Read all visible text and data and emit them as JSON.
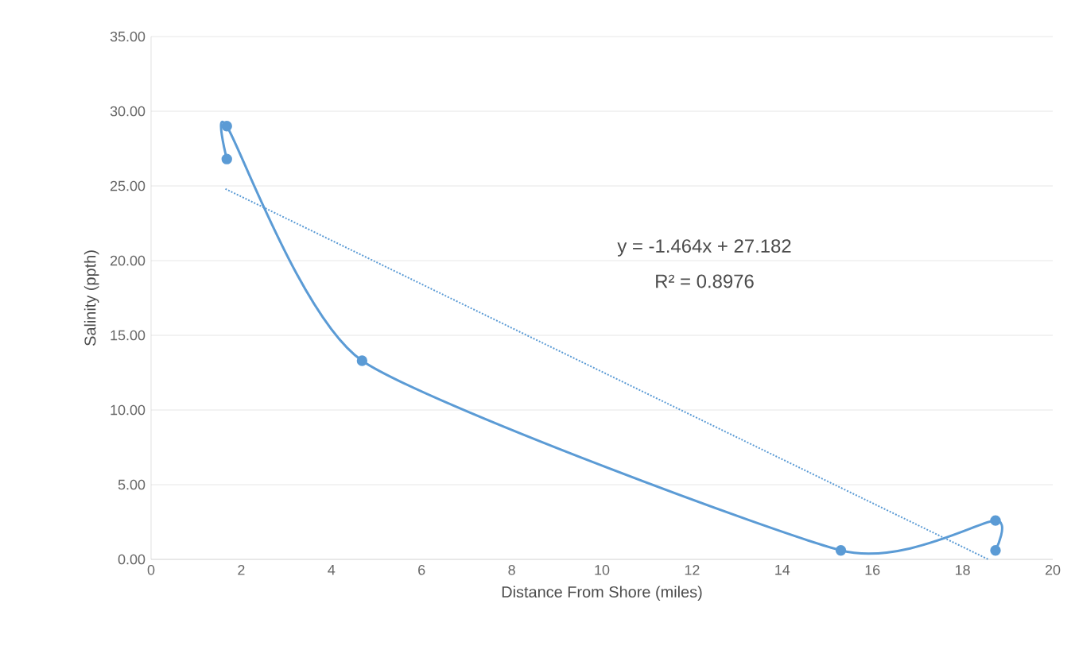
{
  "chart_data": {
    "type": "line",
    "xlabel": "Distance From Shore (miles)",
    "ylabel": "Salinity (ppth)",
    "xlim": [
      0,
      20
    ],
    "xticks": [
      0,
      2,
      4,
      6,
      8,
      10,
      12,
      14,
      16,
      18,
      20
    ],
    "ylim": [
      0,
      35
    ],
    "yticks": [
      {
        "value": 0,
        "label": "0.00"
      },
      {
        "value": 5,
        "label": "5.00"
      },
      {
        "value": 10,
        "label": "10.00"
      },
      {
        "value": 15,
        "label": "15.00"
      },
      {
        "value": 20,
        "label": "20.00"
      },
      {
        "value": 25,
        "label": "25.00"
      },
      {
        "value": 30,
        "label": "30.00"
      },
      {
        "value": 35,
        "label": "35.00"
      }
    ],
    "grid": "y",
    "series": [
      {
        "color": "#5b9bd5",
        "marker": "circle",
        "line_style": "solid",
        "x": [
          1.68,
          1.68,
          4.68,
          15.3,
          18.73,
          18.73
        ],
        "values": [
          26.8,
          29.0,
          13.3,
          0.6,
          2.6,
          0.6
        ]
      },
      {
        "color": "#5b9bd5",
        "marker": "none",
        "line_style": "dotted",
        "x": [
          1.65,
          18.57
        ],
        "values": [
          24.8,
          0.0
        ]
      }
    ],
    "annotations": [
      "y = -1.464x + 27.182",
      "R² = 0.8976"
    ]
  }
}
